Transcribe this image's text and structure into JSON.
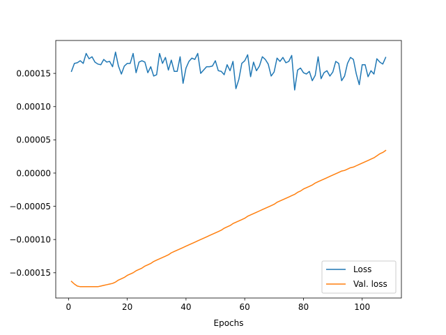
{
  "chart_data": {
    "type": "line",
    "xlabel": "Epochs",
    "ylabel": "",
    "title": "",
    "xlim": [
      -4.35,
      113.35
    ],
    "ylim": [
      -0.000188,
      0.0001995
    ],
    "xticks": [
      0,
      20,
      40,
      60,
      80,
      100
    ],
    "xtick_labels": [
      "0",
      "20",
      "40",
      "60",
      "80",
      "100"
    ],
    "yticks": [
      -0.00015,
      -0.0001,
      -5e-05,
      0,
      5e-05,
      0.0001,
      0.00015
    ],
    "ytick_labels": [
      "−0.00015",
      "−0.00010",
      "−0.00005",
      "0.00000",
      "0.00005",
      "0.00010",
      "0.00015"
    ],
    "grid": false,
    "legend_position": "lower-right",
    "x": [
      1,
      2,
      3,
      4,
      5,
      6,
      7,
      8,
      9,
      10,
      11,
      12,
      13,
      14,
      15,
      16,
      17,
      18,
      19,
      20,
      21,
      22,
      23,
      24,
      25,
      26,
      27,
      28,
      29,
      30,
      31,
      32,
      33,
      34,
      35,
      36,
      37,
      38,
      39,
      40,
      41,
      42,
      43,
      44,
      45,
      46,
      47,
      48,
      49,
      50,
      51,
      52,
      53,
      54,
      55,
      56,
      57,
      58,
      59,
      60,
      61,
      62,
      63,
      64,
      65,
      66,
      67,
      68,
      69,
      70,
      71,
      72,
      73,
      74,
      75,
      76,
      77,
      78,
      79,
      80,
      81,
      82,
      83,
      84,
      85,
      86,
      87,
      88,
      89,
      90,
      91,
      92,
      93,
      94,
      95,
      96,
      97,
      98,
      99,
      100,
      101,
      102,
      103,
      104,
      105,
      106,
      107,
      108
    ],
    "series": [
      {
        "name": "Loss",
        "color": "#1f77b4",
        "values": [
          0.000153,
          0.000165,
          0.000166,
          0.000169,
          0.000165,
          0.00018,
          0.000172,
          0.000175,
          0.000167,
          0.000164,
          0.000163,
          0.000171,
          0.000167,
          0.000168,
          0.00016,
          0.000182,
          0.000161,
          0.000149,
          0.000161,
          0.000165,
          0.000165,
          0.00018,
          0.000151,
          0.000167,
          0.000169,
          0.000167,
          0.000151,
          0.00016,
          0.000146,
          0.000148,
          0.00018,
          0.000165,
          0.000174,
          0.000155,
          0.00017,
          0.000153,
          0.000153,
          0.000175,
          0.000135,
          0.000158,
          0.000168,
          0.000173,
          0.000171,
          0.00018,
          0.00015,
          0.000155,
          0.00016,
          0.00016,
          0.000161,
          0.000169,
          0.000154,
          0.000153,
          0.000148,
          0.000163,
          0.000154,
          0.000168,
          0.000127,
          0.000141,
          0.000165,
          0.000169,
          0.000178,
          0.000145,
          0.000167,
          0.000154,
          0.000161,
          0.000175,
          0.000171,
          0.000164,
          0.000146,
          0.000152,
          0.000173,
          0.000168,
          0.000174,
          0.000166,
          0.000168,
          0.000177,
          0.000125,
          0.000155,
          0.000158,
          0.000151,
          0.000149,
          0.000153,
          0.000139,
          0.000147,
          0.000175,
          0.000142,
          0.000151,
          0.000154,
          0.000146,
          0.000152,
          0.000168,
          0.000165,
          0.000139,
          0.000146,
          0.000165,
          0.000174,
          0.000171,
          0.000149,
          0.000133,
          0.000163,
          0.000163,
          0.000145,
          0.000154,
          0.000149,
          0.000172,
          0.000167,
          0.000164,
          0.000174
        ]
      },
      {
        "name": "Val. loss",
        "color": "#ff7f0e",
        "values": [
          -0.000163,
          -0.000167,
          -0.00017,
          -0.000171,
          -0.000171,
          -0.000171,
          -0.000171,
          -0.000171,
          -0.000171,
          -0.000171,
          -0.00017,
          -0.000169,
          -0.000168,
          -0.000167,
          -0.000166,
          -0.000164,
          -0.000161,
          -0.000159,
          -0.000157,
          -0.000154,
          -0.000152,
          -0.00015,
          -0.000147,
          -0.000145,
          -0.000143,
          -0.00014,
          -0.000138,
          -0.000136,
          -0.000133,
          -0.000131,
          -0.000129,
          -0.000127,
          -0.000125,
          -0.000123,
          -0.00012,
          -0.000118,
          -0.000116,
          -0.000114,
          -0.000112,
          -0.00011,
          -0.000108,
          -0.000106,
          -0.000104,
          -0.000102,
          -0.0001,
          -9.8e-05,
          -9.6e-05,
          -9.4e-05,
          -9.2e-05,
          -9e-05,
          -8.8e-05,
          -8.6e-05,
          -8.3e-05,
          -8.1e-05,
          -7.9e-05,
          -7.6e-05,
          -7.4e-05,
          -7.2e-05,
          -7e-05,
          -6.8e-05,
          -6.5e-05,
          -6.3e-05,
          -6.1e-05,
          -5.9e-05,
          -5.7e-05,
          -5.5e-05,
          -5.3e-05,
          -5.1e-05,
          -4.9e-05,
          -4.7e-05,
          -4.4e-05,
          -4.2e-05,
          -4e-05,
          -3.8e-05,
          -3.6e-05,
          -3.4e-05,
          -3.2e-05,
          -2.9e-05,
          -2.7e-05,
          -2.4e-05,
          -2.2e-05,
          -2e-05,
          -1.8e-05,
          -1.5e-05,
          -1.3e-05,
          -1.1e-05,
          -9e-06,
          -7e-06,
          -5e-06,
          -3e-06,
          -1e-06,
          1e-06,
          3e-06,
          4e-06,
          6e-06,
          8e-06,
          9e-06,
          1.1e-05,
          1.3e-05,
          1.5e-05,
          1.7e-05,
          1.9e-05,
          2.1e-05,
          2.3e-05,
          2.6e-05,
          2.9e-05,
          3.1e-05,
          3.4e-05
        ]
      }
    ]
  }
}
